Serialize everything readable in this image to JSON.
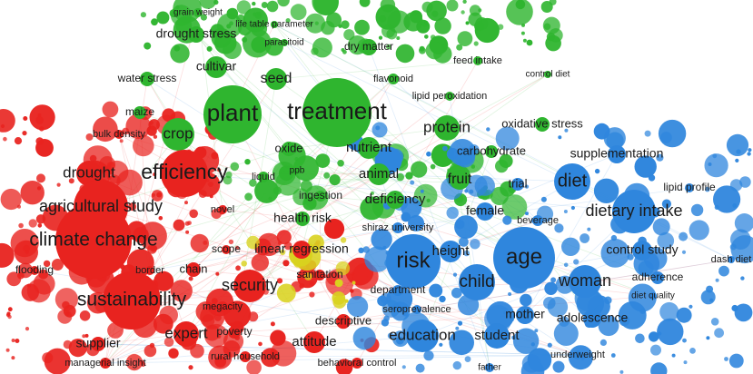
{
  "map": {
    "clusters": [
      {
        "id": "red",
        "color": "#e8231f"
      },
      {
        "id": "green",
        "color": "#2fb52f"
      },
      {
        "id": "blue",
        "color": "#2f86dd"
      },
      {
        "id": "yellow",
        "color": "#d9d21e"
      }
    ],
    "labels": {
      "grain_weight": "grain weight",
      "life_table_parameter": "life table parameter",
      "drought_stress": "drought stress",
      "parasitoid": "parasitoid",
      "dry_matter": "dry matter",
      "feed_intake": "feed intake",
      "control_diet": "control diet",
      "cultivar": "cultivar",
      "water_stress": "water stress",
      "seed": "seed",
      "flavonoid": "flavonoid",
      "lipid_peroxidation": "lipid peroxidation",
      "maize": "maize",
      "plant": "plant",
      "treatment": "treatment",
      "protein": "protein",
      "oxidative_stress": "oxidative stress",
      "bulk_density": "bulk density",
      "crop": "crop",
      "oxide": "oxide",
      "nutrient": "nutrient",
      "carbohydrate": "carbohydrate",
      "supplementation": "supplementation",
      "drought": "drought",
      "efficiency": "efficiency",
      "liquid": "liquid",
      "ppb": "ppb",
      "animal": "animal",
      "fruit": "fruit",
      "trial": "trial",
      "diet": "diet",
      "lipid_profile": "lipid profile",
      "agricultural_study": "agricultural study",
      "novel": "novel",
      "ingestion": "ingestion",
      "deficiency": "deficiency",
      "female": "female",
      "dietary_intake": "dietary intake",
      "health_risk": "health risk",
      "shiraz_university": "shiraz university",
      "beverage": "beverage",
      "climate_change": "climate change",
      "scope": "scope",
      "linear_regression": "linear regression",
      "height": "height",
      "control_study": "control study",
      "risk": "risk",
      "age": "age",
      "dash_diet": "dash diet",
      "flooding": "flooding",
      "border": "border",
      "chain": "chain",
      "sanitation": "sanitation",
      "security": "security",
      "child": "child",
      "woman": "woman",
      "adherence": "adherence",
      "department": "department",
      "diet_quality": "diet quality",
      "sustainability": "sustainability",
      "megacity": "megacity",
      "seroprevalence": "seroprevalence",
      "mother": "mother",
      "adolescence": "adolescence",
      "descriptive": "descriptive",
      "poverty": "poverty",
      "expert": "expert",
      "education": "education",
      "student": "student",
      "supplier": "supplier",
      "attitude": "attitude",
      "rural_household": "rural household",
      "underweight": "underweight",
      "managerial_insight": "managerial insight",
      "behavioral_control": "behavioral control",
      "father": "father"
    }
  }
}
